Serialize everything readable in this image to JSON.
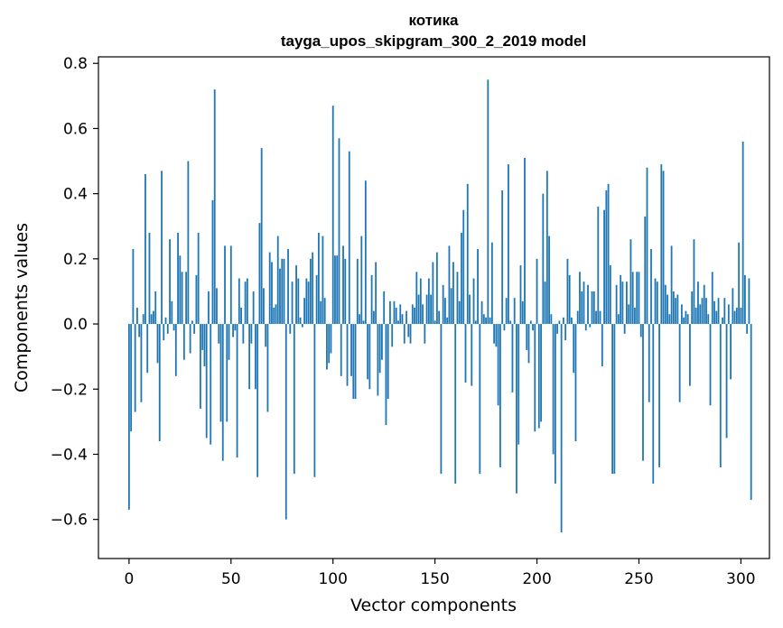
{
  "chart_data": {
    "type": "bar",
    "title": "котика",
    "subtitle": "tayga_upos_skipgram_300_2_2019 model",
    "xlabel": "Vector components",
    "ylabel": "Components values",
    "xlim": [
      -15,
      314
    ],
    "ylim": [
      -0.72,
      0.82
    ],
    "x_ticks": [
      0,
      50,
      100,
      150,
      200,
      250,
      300
    ],
    "x_tick_labels": [
      "0",
      "50",
      "100",
      "150",
      "200",
      "250",
      "300"
    ],
    "y_ticks": [
      -0.6,
      -0.4,
      -0.2,
      0.0,
      0.2,
      0.4,
      0.6,
      0.8
    ],
    "y_tick_labels": [
      "−0.6",
      "−0.4",
      "−0.2",
      "0.0",
      "0.2",
      "0.4",
      "0.6",
      "0.8"
    ],
    "bar_color": "#1f77b4",
    "grid": false,
    "series": [
      {
        "name": "котика",
        "values": [
          -0.57,
          -0.33,
          0.23,
          -0.27,
          0.05,
          -0.04,
          -0.24,
          0.03,
          0.46,
          -0.15,
          0.28,
          0.03,
          0.04,
          0.1,
          -0.12,
          -0.36,
          0.47,
          -0.05,
          0.02,
          -0.03,
          0.26,
          0.07,
          -0.02,
          -0.16,
          0.28,
          0.21,
          0.16,
          -0.11,
          0.16,
          0.5,
          -0.09,
          0.01,
          -0.03,
          0.15,
          0.28,
          -0.26,
          -0.08,
          -0.13,
          -0.35,
          0.1,
          -0.37,
          0.38,
          0.72,
          0.11,
          -0.06,
          -0.3,
          -0.42,
          0.24,
          -0.3,
          -0.11,
          0.24,
          -0.04,
          -0.02,
          -0.41,
          0.14,
          0.05,
          -0.06,
          0.13,
          0.14,
          -0.2,
          -0.06,
          0.1,
          -0.2,
          -0.47,
          0.31,
          0.54,
          0.11,
          -0.07,
          -0.27,
          0.22,
          0.19,
          0.05,
          0.06,
          0.27,
          0.17,
          0.2,
          0.2,
          -0.6,
          0.23,
          -0.03,
          0.13,
          -0.46,
          0.18,
          0.14,
          0.02,
          -0.01,
          0.08,
          0.14,
          0.13,
          0.2,
          0.22,
          -0.47,
          0.15,
          0.28,
          0.07,
          0.27,
          0.08,
          -0.14,
          -0.12,
          -0.09,
          0.67,
          0.21,
          0.21,
          0.57,
          -0.16,
          0.24,
          0.2,
          -0.19,
          0.53,
          -0.16,
          -0.23,
          -0.23,
          0.2,
          0.03,
          0.27,
          0.01,
          0.44,
          -0.17,
          -0.2,
          0.15,
          0.04,
          0.19,
          -0.22,
          -0.15,
          -0.11,
          0.1,
          -0.31,
          -0.23,
          0.07,
          -0.07,
          0.07,
          0.05,
          0.01,
          0.06,
          0.03,
          -0.06,
          0.04,
          -0.04,
          -0.06,
          0.06,
          0.05,
          0.16,
          0.09,
          0.14,
          0.06,
          -0.06,
          0.09,
          0.14,
          0.09,
          0.19,
          0.01,
          0.22,
          0.04,
          -0.46,
          0.12,
          0.08,
          0.02,
          0.24,
          0.11,
          0.19,
          -0.49,
          0.16,
          0.07,
          0.28,
          0.35,
          -0.18,
          0.43,
          0.09,
          -0.19,
          0.14,
          0.01,
          0.23,
          -0.46,
          0.07,
          0.03,
          0.02,
          0.75,
          0.02,
          0.25,
          -0.06,
          -0.07,
          -0.25,
          -0.44,
          0.41,
          -0.02,
          0.08,
          0.49,
          0.01,
          -0.21,
          0.08,
          -0.52,
          -0.37,
          0.18,
          0.07,
          0.51,
          -0.08,
          -0.12,
          0.01,
          -0.02,
          -0.33,
          0.2,
          -0.32,
          -0.3,
          0.4,
          0.13,
          0.47,
          0.27,
          0.03,
          -0.4,
          -0.49,
          -0.03,
          0.01,
          -0.64,
          0.02,
          -0.05,
          0.2,
          0.15,
          0.02,
          -0.15,
          -0.36,
          0.04,
          0.16,
          0.1,
          0.13,
          -0.02,
          0.12,
          -0.01,
          0.1,
          0.1,
          0.04,
          0.36,
          0.04,
          -0.13,
          0.35,
          0.41,
          0.43,
          0.18,
          -0.46,
          -0.46,
          0.12,
          0.03,
          0.15,
          0.13,
          -0.03,
          0.13,
          0.06,
          0.26,
          0.16,
          0.05,
          0.16,
          0.16,
          -0.04,
          -0.42,
          0.33,
          0.48,
          -0.24,
          0.23,
          -0.49,
          0.14,
          0.13,
          -0.44,
          0.49,
          0.47,
          0.12,
          0.09,
          0.03,
          0.24,
          0.1,
          0.08,
          0.09,
          -0.24,
          0.06,
          0.02,
          0.04,
          0.03,
          -0.19,
          0.1,
          0.26,
          0.05,
          0.13,
          0.06,
          0.08,
          0.12,
          0.08,
          0.03,
          -0.25,
          0.16,
          0.07,
          0.04,
          0.08,
          -0.44,
          0.02,
          0.08,
          -0.35,
          0.06,
          -0.17,
          0.11,
          0.04,
          0.05,
          0.25,
          0.05,
          0.56,
          0.15,
          -0.03,
          0.14,
          -0.54
        ]
      }
    ]
  }
}
